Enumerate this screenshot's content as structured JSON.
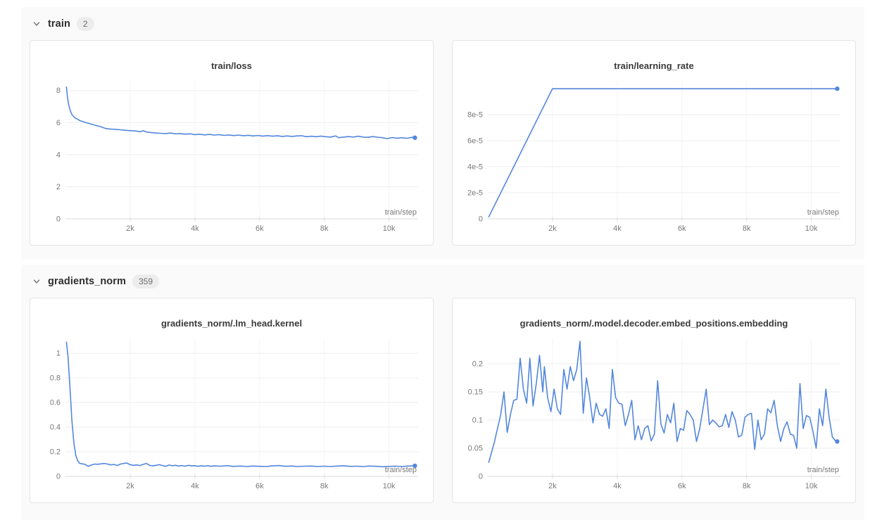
{
  "colors": {
    "line_blue": "#5387DD",
    "panel_bg": "#fafafa",
    "card_border": "#e4e4e4",
    "axis": "#d9d9d9",
    "tick_mark": "#e0e0e0",
    "grid_h": "#ededed",
    "grid_v": "#f3f3f3",
    "tick_text": "#797979",
    "title_text": "#3a3a3a"
  },
  "sections": [
    {
      "id": "train",
      "title": "train",
      "count": "2",
      "chevron_icon": "chevron-down"
    },
    {
      "id": "gradients_norm",
      "title": "gradients_norm",
      "count": "359",
      "chevron_icon": "chevron-down"
    }
  ],
  "chart_data": [
    {
      "type": "line",
      "title": "train/loss",
      "xlabel": "train/step",
      "legend_position": "none",
      "grid": true,
      "xlim": [
        0,
        10900
      ],
      "ylim": [
        0,
        8.6
      ],
      "xticks": [
        2000,
        4000,
        6000,
        8000,
        10000
      ],
      "xtick_labels": [
        "2k",
        "4k",
        "6k",
        "8k",
        "10k"
      ],
      "yticks": [
        0,
        2,
        4,
        6,
        8
      ],
      "ytick_labels": [
        "0",
        "2",
        "4",
        "6",
        "8"
      ],
      "end_marker": true,
      "points": [
        [
          30,
          8.22
        ],
        [
          60,
          7.6
        ],
        [
          100,
          7.1
        ],
        [
          150,
          6.75
        ],
        [
          200,
          6.5
        ],
        [
          280,
          6.32
        ],
        [
          360,
          6.22
        ],
        [
          450,
          6.12
        ],
        [
          560,
          6.05
        ],
        [
          680,
          5.97
        ],
        [
          800,
          5.9
        ],
        [
          950,
          5.82
        ],
        [
          1100,
          5.74
        ],
        [
          1250,
          5.63
        ],
        [
          1400,
          5.6
        ],
        [
          1550,
          5.58
        ],
        [
          1700,
          5.55
        ],
        [
          1850,
          5.52
        ],
        [
          2000,
          5.5
        ],
        [
          2150,
          5.48
        ],
        [
          2300,
          5.43
        ],
        [
          2400,
          5.5
        ],
        [
          2500,
          5.42
        ],
        [
          2650,
          5.38
        ],
        [
          2800,
          5.35
        ],
        [
          2950,
          5.33
        ],
        [
          3100,
          5.32
        ],
        [
          3250,
          5.35
        ],
        [
          3400,
          5.3
        ],
        [
          3550,
          5.32
        ],
        [
          3700,
          5.28
        ],
        [
          3850,
          5.3
        ],
        [
          4000,
          5.25
        ],
        [
          4150,
          5.28
        ],
        [
          4300,
          5.23
        ],
        [
          4450,
          5.27
        ],
        [
          4600,
          5.22
        ],
        [
          4750,
          5.25
        ],
        [
          4900,
          5.2
        ],
        [
          5050,
          5.23
        ],
        [
          5200,
          5.19
        ],
        [
          5350,
          5.22
        ],
        [
          5500,
          5.18
        ],
        [
          5650,
          5.21
        ],
        [
          5800,
          5.17
        ],
        [
          5950,
          5.2
        ],
        [
          6100,
          5.16
        ],
        [
          6250,
          5.19
        ],
        [
          6400,
          5.15
        ],
        [
          6550,
          5.18
        ],
        [
          6700,
          5.14
        ],
        [
          6850,
          5.17
        ],
        [
          7000,
          5.14
        ],
        [
          7150,
          5.17
        ],
        [
          7300,
          5.18
        ],
        [
          7450,
          5.12
        ],
        [
          7600,
          5.15
        ],
        [
          7750,
          5.12
        ],
        [
          7900,
          5.16
        ],
        [
          8050,
          5.12
        ],
        [
          8200,
          5.1
        ],
        [
          8350,
          5.17
        ],
        [
          8450,
          5.06
        ],
        [
          8600,
          5.1
        ],
        [
          8750,
          5.13
        ],
        [
          8900,
          5.1
        ],
        [
          9050,
          5.15
        ],
        [
          9200,
          5.1
        ],
        [
          9350,
          5.08
        ],
        [
          9500,
          5.13
        ],
        [
          9650,
          5.09
        ],
        [
          9800,
          5.06
        ],
        [
          9950,
          5.0
        ],
        [
          10100,
          5.07
        ],
        [
          10250,
          5.03
        ],
        [
          10400,
          5.06
        ],
        [
          10550,
          5.02
        ],
        [
          10700,
          5.08
        ],
        [
          10800,
          5.06
        ]
      ]
    },
    {
      "type": "line",
      "title": "train/learning_rate",
      "xlabel": "train/step",
      "legend_position": "none",
      "grid": true,
      "xlim": [
        0,
        10900
      ],
      "ylim": [
        0,
        0.000106
      ],
      "xticks": [
        2000,
        4000,
        6000,
        8000,
        10000
      ],
      "xtick_labels": [
        "2k",
        "4k",
        "6k",
        "8k",
        "10k"
      ],
      "yticks": [
        0,
        2e-05,
        4e-05,
        6e-05,
        8e-05
      ],
      "ytick_labels": [
        "0",
        "2e-5",
        "4e-5",
        "6e-5",
        "8e-5"
      ],
      "end_marker": true,
      "points": [
        [
          30,
          1.5e-06
        ],
        [
          2000,
          0.0001
        ],
        [
          10800,
          0.0001
        ]
      ]
    },
    {
      "type": "line",
      "title": "gradients_norm/.lm_head.kernel",
      "xlabel": "train/step",
      "legend_position": "none",
      "grid": true,
      "xlim": [
        0,
        10900
      ],
      "ylim": [
        0,
        1.12
      ],
      "xticks": [
        2000,
        4000,
        6000,
        8000,
        10000
      ],
      "xtick_labels": [
        "2k",
        "4k",
        "6k",
        "8k",
        "10k"
      ],
      "yticks": [
        0,
        0.2,
        0.4,
        0.6,
        0.8,
        1
      ],
      "ytick_labels": [
        "0",
        "0.2",
        "0.4",
        "0.6",
        "0.8",
        "1"
      ],
      "end_marker": true,
      "points": [
        [
          30,
          1.09
        ],
        [
          80,
          0.97
        ],
        [
          140,
          0.72
        ],
        [
          200,
          0.45
        ],
        [
          260,
          0.27
        ],
        [
          320,
          0.17
        ],
        [
          380,
          0.125
        ],
        [
          440,
          0.105
        ],
        [
          520,
          0.102
        ],
        [
          600,
          0.098
        ],
        [
          700,
          0.082
        ],
        [
          800,
          0.092
        ],
        [
          900,
          0.1
        ],
        [
          1000,
          0.098
        ],
        [
          1100,
          0.102
        ],
        [
          1200,
          0.105
        ],
        [
          1300,
          0.1
        ],
        [
          1400,
          0.093
        ],
        [
          1500,
          0.097
        ],
        [
          1600,
          0.088
        ],
        [
          1700,
          0.1
        ],
        [
          1800,
          0.105
        ],
        [
          1900,
          0.108
        ],
        [
          2000,
          0.095
        ],
        [
          2100,
          0.09
        ],
        [
          2200,
          0.093
        ],
        [
          2300,
          0.088
        ],
        [
          2400,
          0.097
        ],
        [
          2500,
          0.105
        ],
        [
          2600,
          0.09
        ],
        [
          2700,
          0.085
        ],
        [
          2800,
          0.09
        ],
        [
          2900,
          0.095
        ],
        [
          3000,
          0.088
        ],
        [
          3100,
          0.082
        ],
        [
          3200,
          0.092
        ],
        [
          3300,
          0.086
        ],
        [
          3400,
          0.09
        ],
        [
          3500,
          0.084
        ],
        [
          3600,
          0.088
        ],
        [
          3700,
          0.083
        ],
        [
          3800,
          0.09
        ],
        [
          3900,
          0.085
        ],
        [
          4000,
          0.087
        ],
        [
          4100,
          0.082
        ],
        [
          4200,
          0.086
        ],
        [
          4300,
          0.083
        ],
        [
          4400,
          0.087
        ],
        [
          4500,
          0.082
        ],
        [
          4600,
          0.085
        ],
        [
          4800,
          0.083
        ],
        [
          5000,
          0.087
        ],
        [
          5200,
          0.081
        ],
        [
          5400,
          0.084
        ],
        [
          5600,
          0.08
        ],
        [
          5800,
          0.084
        ],
        [
          6000,
          0.082
        ],
        [
          6200,
          0.08
        ],
        [
          6400,
          0.085
        ],
        [
          6600,
          0.088
        ],
        [
          6800,
          0.082
        ],
        [
          7000,
          0.084
        ],
        [
          7200,
          0.08
        ],
        [
          7400,
          0.083
        ],
        [
          7600,
          0.084
        ],
        [
          7800,
          0.08
        ],
        [
          8000,
          0.083
        ],
        [
          8200,
          0.08
        ],
        [
          8400,
          0.084
        ],
        [
          8600,
          0.086
        ],
        [
          8800,
          0.081
        ],
        [
          9000,
          0.083
        ],
        [
          9200,
          0.08
        ],
        [
          9400,
          0.084
        ],
        [
          9600,
          0.082
        ],
        [
          9800,
          0.078
        ],
        [
          10000,
          0.081
        ],
        [
          10200,
          0.083
        ],
        [
          10400,
          0.08
        ],
        [
          10600,
          0.084
        ],
        [
          10800,
          0.086
        ]
      ]
    },
    {
      "type": "line",
      "title": "gradients_norm/.model.decoder.embed_positions.embedding",
      "xlabel": "train/step",
      "legend_position": "none",
      "grid": true,
      "xlim": [
        0,
        10900
      ],
      "ylim": [
        0,
        0.245
      ],
      "xticks": [
        2000,
        4000,
        6000,
        8000,
        10000
      ],
      "xtick_labels": [
        "2k",
        "4k",
        "6k",
        "8k",
        "10k"
      ],
      "yticks": [
        0,
        0.05,
        0.1,
        0.15,
        0.2
      ],
      "ytick_labels": [
        "0",
        "0.05",
        "0.1",
        "0.15",
        "0.2"
      ],
      "end_marker": true,
      "points": [
        [
          30,
          0.025
        ],
        [
          200,
          0.06
        ],
        [
          400,
          0.11
        ],
        [
          500,
          0.15
        ],
        [
          600,
          0.078
        ],
        [
          700,
          0.11
        ],
        [
          800,
          0.135
        ],
        [
          900,
          0.137
        ],
        [
          1000,
          0.21
        ],
        [
          1100,
          0.155
        ],
        [
          1200,
          0.13
        ],
        [
          1300,
          0.21
        ],
        [
          1400,
          0.125
        ],
        [
          1500,
          0.165
        ],
        [
          1600,
          0.215
        ],
        [
          1700,
          0.15
        ],
        [
          1750,
          0.195
        ],
        [
          1850,
          0.14
        ],
        [
          1950,
          0.115
        ],
        [
          2050,
          0.155
        ],
        [
          2150,
          0.12
        ],
        [
          2250,
          0.11
        ],
        [
          2350,
          0.19
        ],
        [
          2450,
          0.155
        ],
        [
          2550,
          0.195
        ],
        [
          2650,
          0.17
        ],
        [
          2750,
          0.19
        ],
        [
          2850,
          0.24
        ],
        [
          2950,
          0.112
        ],
        [
          3050,
          0.175
        ],
        [
          3150,
          0.14
        ],
        [
          3250,
          0.095
        ],
        [
          3350,
          0.13
        ],
        [
          3450,
          0.11
        ],
        [
          3550,
          0.107
        ],
        [
          3650,
          0.12
        ],
        [
          3750,
          0.085
        ],
        [
          3850,
          0.19
        ],
        [
          3950,
          0.14
        ],
        [
          4050,
          0.13
        ],
        [
          4150,
          0.128
        ],
        [
          4250,
          0.09
        ],
        [
          4350,
          0.11
        ],
        [
          4450,
          0.135
        ],
        [
          4550,
          0.065
        ],
        [
          4650,
          0.09
        ],
        [
          4750,
          0.065
        ],
        [
          4850,
          0.085
        ],
        [
          4950,
          0.09
        ],
        [
          5050,
          0.063
        ],
        [
          5150,
          0.075
        ],
        [
          5250,
          0.17
        ],
        [
          5350,
          0.093
        ],
        [
          5450,
          0.077
        ],
        [
          5550,
          0.11
        ],
        [
          5650,
          0.095
        ],
        [
          5750,
          0.13
        ],
        [
          5850,
          0.062
        ],
        [
          5950,
          0.085
        ],
        [
          6050,
          0.082
        ],
        [
          6150,
          0.117
        ],
        [
          6250,
          0.11
        ],
        [
          6350,
          0.1
        ],
        [
          6450,
          0.062
        ],
        [
          6550,
          0.085
        ],
        [
          6650,
          0.12
        ],
        [
          6750,
          0.155
        ],
        [
          6850,
          0.092
        ],
        [
          6950,
          0.1
        ],
        [
          7050,
          0.095
        ],
        [
          7150,
          0.088
        ],
        [
          7250,
          0.09
        ],
        [
          7350,
          0.11
        ],
        [
          7450,
          0.087
        ],
        [
          7550,
          0.115
        ],
        [
          7650,
          0.1
        ],
        [
          7750,
          0.07
        ],
        [
          7850,
          0.073
        ],
        [
          7950,
          0.105
        ],
        [
          8050,
          0.11
        ],
        [
          8150,
          0.112
        ],
        [
          8250,
          0.048
        ],
        [
          8350,
          0.1
        ],
        [
          8450,
          0.065
        ],
        [
          8550,
          0.075
        ],
        [
          8650,
          0.12
        ],
        [
          8750,
          0.113
        ],
        [
          8850,
          0.135
        ],
        [
          8950,
          0.09
        ],
        [
          9050,
          0.062
        ],
        [
          9150,
          0.085
        ],
        [
          9250,
          0.097
        ],
        [
          9350,
          0.075
        ],
        [
          9450,
          0.073
        ],
        [
          9550,
          0.05
        ],
        [
          9650,
          0.165
        ],
        [
          9750,
          0.085
        ],
        [
          9850,
          0.108
        ],
        [
          9950,
          0.105
        ],
        [
          10050,
          0.08
        ],
        [
          10150,
          0.05
        ],
        [
          10250,
          0.12
        ],
        [
          10350,
          0.09
        ],
        [
          10450,
          0.155
        ],
        [
          10550,
          0.105
        ],
        [
          10650,
          0.07
        ],
        [
          10750,
          0.063
        ],
        [
          10800,
          0.062
        ]
      ]
    }
  ]
}
